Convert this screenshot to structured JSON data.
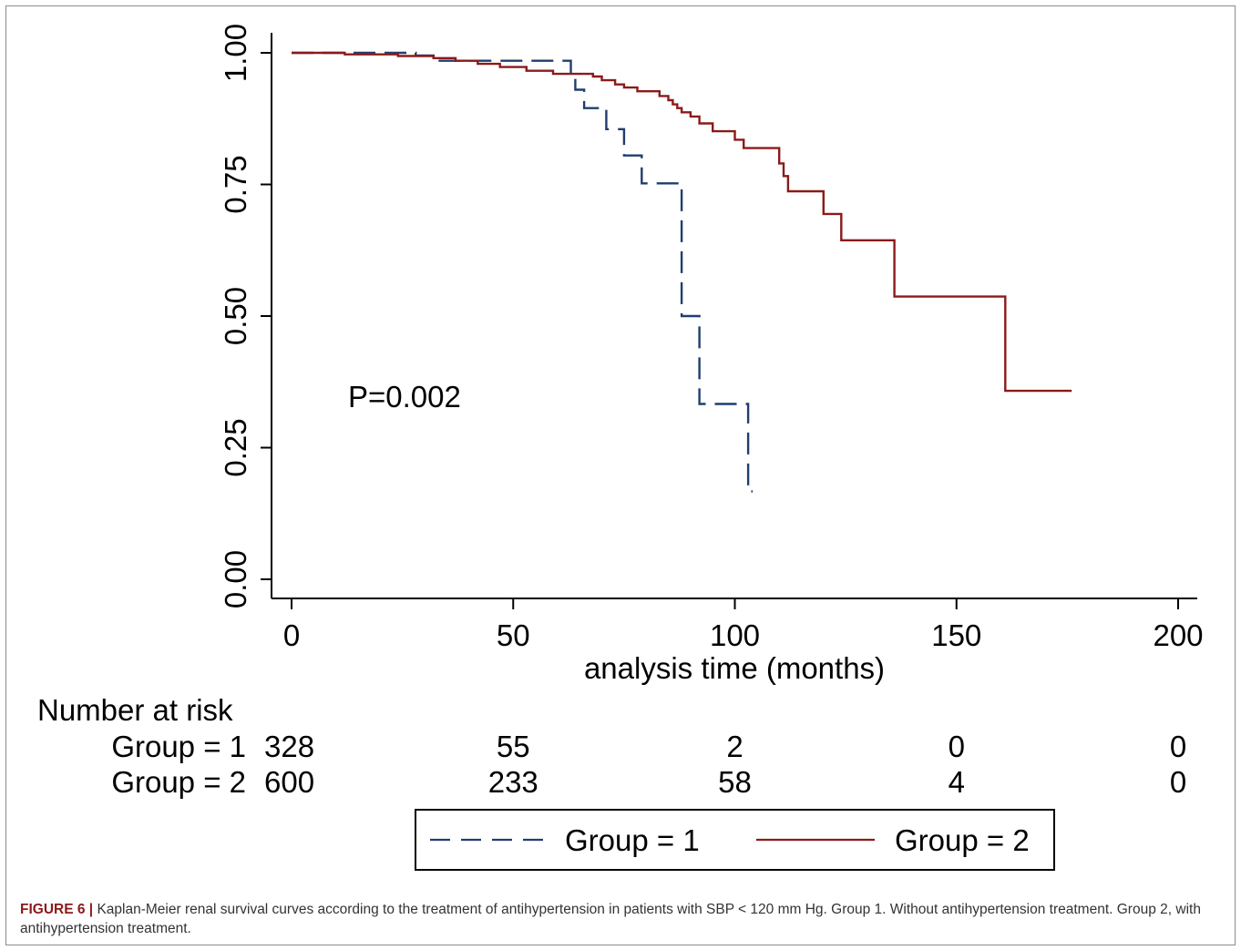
{
  "chart_data": {
    "type": "line",
    "subtype": "kaplan-meier-step",
    "xlabel": "analysis time (months)",
    "ylabel": "",
    "xlim": [
      0,
      200
    ],
    "ylim": [
      0,
      1
    ],
    "x_ticks": [
      "0",
      "50",
      "100",
      "150",
      "200"
    ],
    "y_ticks": [
      "0.00",
      "0.25",
      "0.50",
      "0.75",
      "1.00"
    ],
    "x_tick_values": [
      0,
      50,
      100,
      150,
      200
    ],
    "y_tick_values": [
      0,
      0.25,
      0.5,
      0.75,
      1.0
    ],
    "grid": false,
    "annotation": "P=0.002",
    "series": [
      {
        "name": "Group = 1",
        "style": "dashed",
        "color": "#1f3e6e",
        "points": [
          [
            0,
            1.0
          ],
          [
            28,
            1.0
          ],
          [
            28,
            0.995
          ],
          [
            33,
            0.995
          ],
          [
            33,
            0.985
          ],
          [
            63,
            0.985
          ],
          [
            63,
            0.955
          ],
          [
            64,
            0.955
          ],
          [
            64,
            0.93
          ],
          [
            66,
            0.93
          ],
          [
            66,
            0.895
          ],
          [
            71,
            0.895
          ],
          [
            71,
            0.855
          ],
          [
            75,
            0.855
          ],
          [
            75,
            0.805
          ],
          [
            79,
            0.805
          ],
          [
            79,
            0.752
          ],
          [
            88,
            0.752
          ],
          [
            88,
            0.5
          ],
          [
            92,
            0.5
          ],
          [
            92,
            0.333
          ],
          [
            103,
            0.333
          ],
          [
            103,
            0.167
          ],
          [
            104,
            0.167
          ]
        ]
      },
      {
        "name": "Group = 2",
        "style": "solid",
        "color": "#8b1a1a",
        "points": [
          [
            0,
            1.0
          ],
          [
            12,
            1.0
          ],
          [
            12,
            0.997
          ],
          [
            24,
            0.997
          ],
          [
            24,
            0.994
          ],
          [
            32,
            0.994
          ],
          [
            32,
            0.99
          ],
          [
            37,
            0.99
          ],
          [
            37,
            0.985
          ],
          [
            42,
            0.985
          ],
          [
            42,
            0.979
          ],
          [
            47,
            0.979
          ],
          [
            47,
            0.973
          ],
          [
            53,
            0.973
          ],
          [
            53,
            0.966
          ],
          [
            59,
            0.966
          ],
          [
            59,
            0.96
          ],
          [
            68,
            0.96
          ],
          [
            68,
            0.955
          ],
          [
            70,
            0.955
          ],
          [
            70,
            0.948
          ],
          [
            73,
            0.948
          ],
          [
            73,
            0.94
          ],
          [
            75,
            0.94
          ],
          [
            75,
            0.934
          ],
          [
            78,
            0.934
          ],
          [
            78,
            0.927
          ],
          [
            83,
            0.927
          ],
          [
            83,
            0.918
          ],
          [
            85,
            0.918
          ],
          [
            85,
            0.91
          ],
          [
            86,
            0.91
          ],
          [
            86,
            0.902
          ],
          [
            87,
            0.902
          ],
          [
            87,
            0.895
          ],
          [
            88,
            0.895
          ],
          [
            88,
            0.887
          ],
          [
            90,
            0.887
          ],
          [
            90,
            0.879
          ],
          [
            92,
            0.879
          ],
          [
            92,
            0.866
          ],
          [
            95,
            0.866
          ],
          [
            95,
            0.851
          ],
          [
            100,
            0.851
          ],
          [
            100,
            0.835
          ],
          [
            102,
            0.835
          ],
          [
            102,
            0.819
          ],
          [
            110,
            0.819
          ],
          [
            110,
            0.79
          ],
          [
            111,
            0.79
          ],
          [
            111,
            0.766
          ],
          [
            112,
            0.766
          ],
          [
            112,
            0.737
          ],
          [
            120,
            0.737
          ],
          [
            120,
            0.694
          ],
          [
            124,
            0.694
          ],
          [
            124,
            0.644
          ],
          [
            136,
            0.644
          ],
          [
            136,
            0.537
          ],
          [
            161,
            0.537
          ],
          [
            161,
            0.358
          ],
          [
            176,
            0.358
          ]
        ]
      }
    ],
    "risk_table": {
      "title": "Number at risk",
      "rows": [
        {
          "label": "Group = 1",
          "counts": [
            "328",
            "55",
            "2",
            "0",
            "0"
          ]
        },
        {
          "label": "Group = 2",
          "counts": [
            "600",
            "233",
            "58",
            "4",
            "0"
          ]
        }
      ]
    },
    "legend": {
      "placement": "bottom-center",
      "items": [
        "Group = 1",
        "Group = 2"
      ]
    }
  },
  "caption": {
    "label": "FIGURE 6 |",
    "text": "Kaplan-Meier renal survival curves according to the treatment of antihypertension in patients with SBP < 120 mm Hg. Group 1. Without antihypertension treatment. Group 2, with antihypertension treatment."
  }
}
